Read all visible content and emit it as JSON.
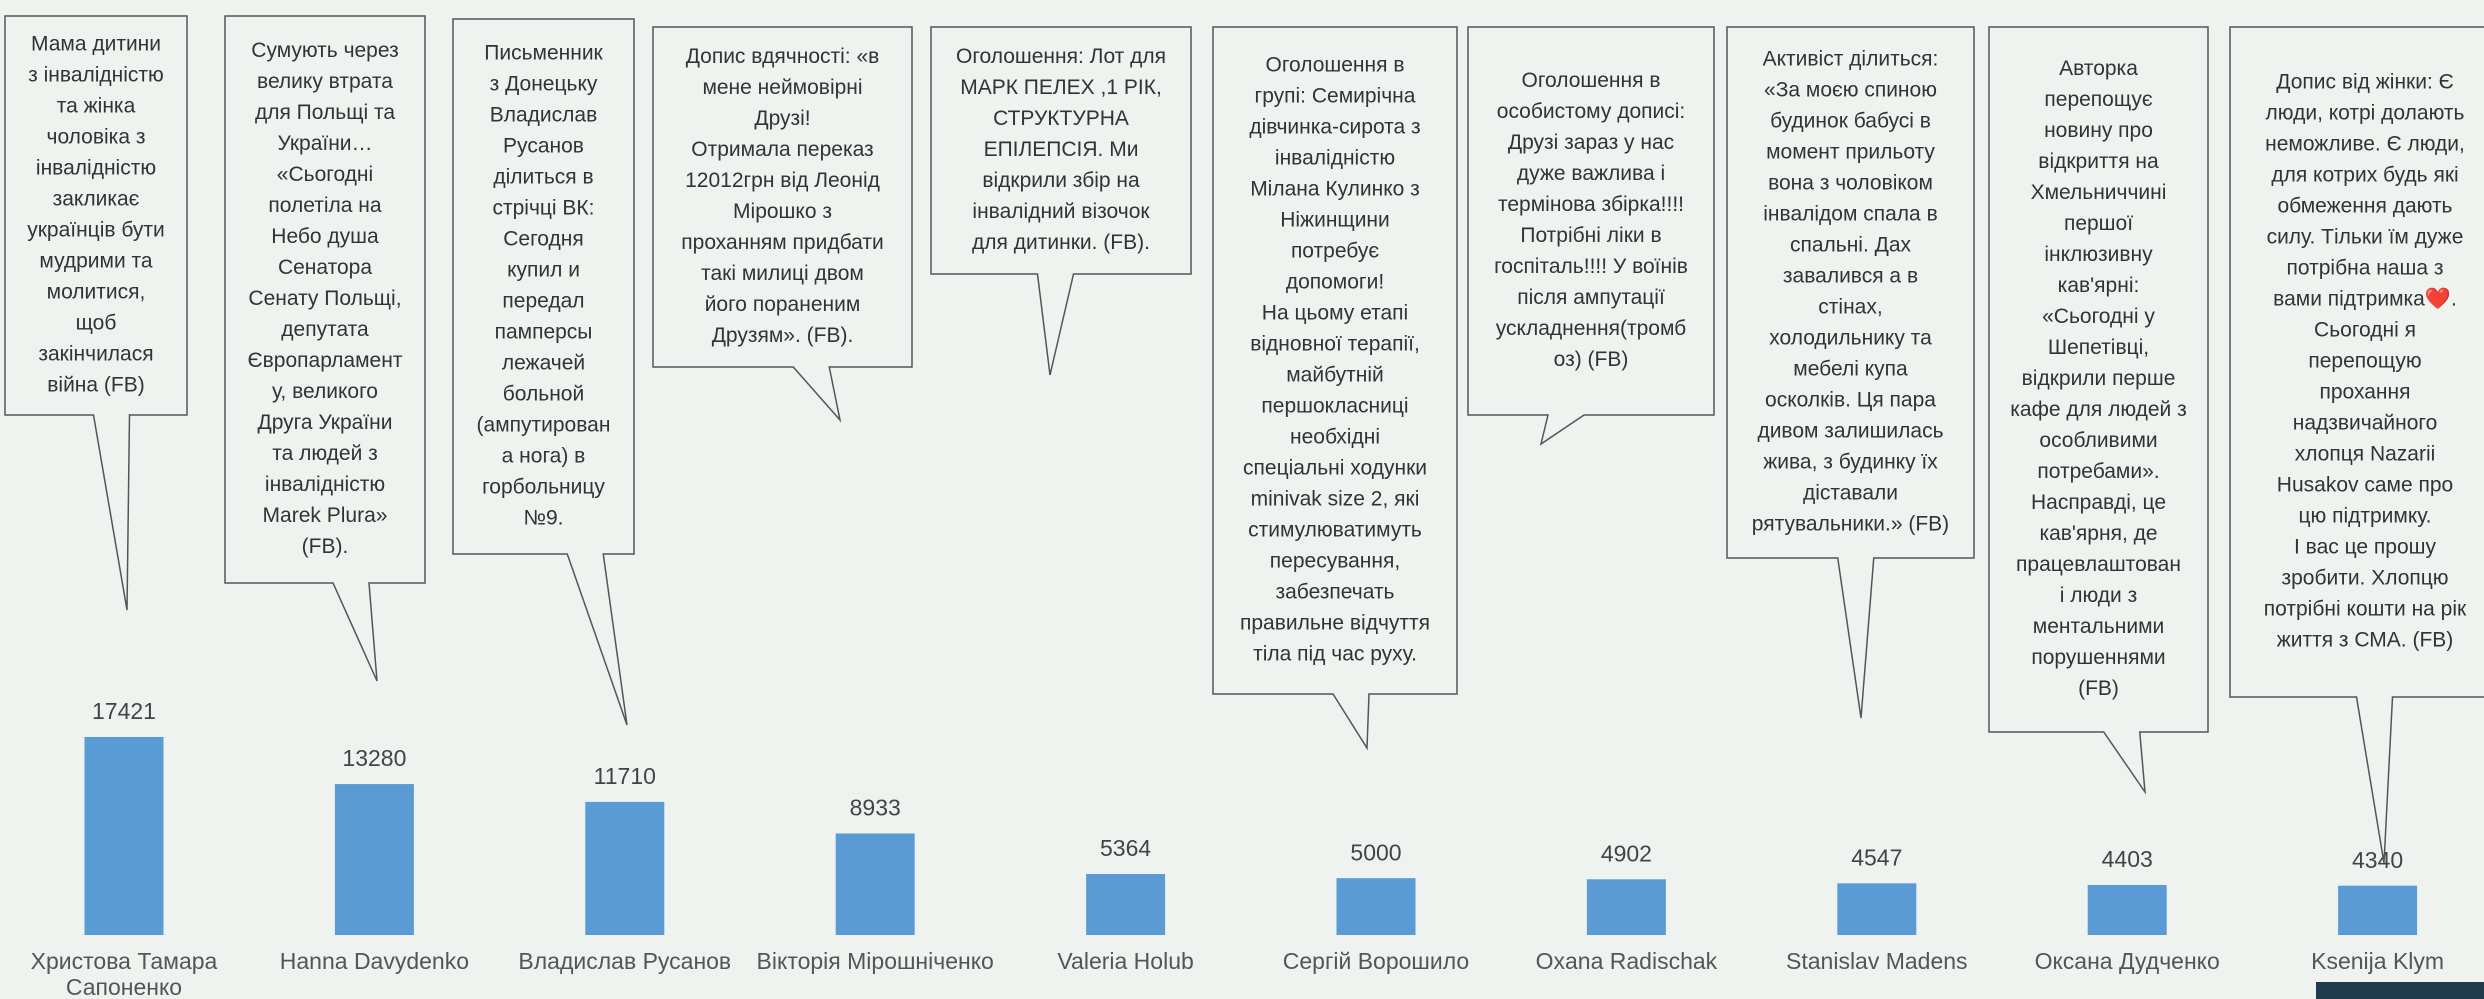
{
  "chart_data": {
    "type": "bar",
    "categories": [
      "Христова Тамара Сапоненко",
      "Hanna  Davydenko",
      "Владислав Русанов",
      "Вікторія Мірошніченко",
      "Valeria Holub",
      "Сергій Ворошило",
      "Oxana  Radischak",
      "Stanislav  Madens",
      "Оксана Дудченко",
      "Ksenija Klym"
    ],
    "values": [
      17421,
      13280,
      11710,
      8933,
      5364,
      5000,
      4902,
      4547,
      4403,
      4340
    ],
    "color": "#5b9bd5",
    "annotations": [
      [
        "Мама дитини",
        "з інвалідністю",
        "та жінка",
        "чоловіка з",
        "інвалідністю",
        "закликає",
        "українців бути",
        "мудрими та",
        "молитися,",
        "щоб",
        "закінчилася",
        "війна (FB)"
      ],
      [
        "Сумують через",
        "велику втрата",
        "для Польщі та",
        "України…",
        "«Сьогодні",
        "полетіла на",
        "Небо душа",
        "Сенатора",
        "Сенату Польщі,",
        "депутата",
        "Європарламент",
        "у, великого",
        "Друга України",
        "та людей з",
        "інвалідністю",
        "Marek Plura»",
        "(FB)."
      ],
      [
        "Письменник",
        "з Донецьку",
        "Владислав",
        "Русанов",
        "ділиться в",
        "стрічці ВК:",
        "Сегодня",
        "купил и",
        "передал",
        "памперсы",
        "лежачей",
        "больной",
        "(ампутирован",
        "а нога) в",
        "горбольницу",
        "№9."
      ],
      [
        "Допис вдячності: «в",
        "мене неймовірні",
        "Друзі!",
        "Отримала переказ",
        "12012грн від Леонід",
        "Мірошко з",
        "проханням придбати",
        "такі милиці двом",
        "його пораненим",
        "Друзям». (FB)."
      ],
      [
        "Оголошення: Лот для",
        "МАРК ПЕЛЕХ ,1 РІК,",
        "СТРУКТУРНА",
        "ЕПІЛЕПСІЯ. Ми",
        "відкрили збір на",
        "інвалідний візочок",
        "для дитинки. (FB)."
      ],
      [
        "Оголошення в",
        "групі: Семирічна",
        "дівчинка-сирота з",
        "інвалідністю",
        "Мілана Кулинко з",
        "Ніжинщини",
        "потребує",
        "допомоги!",
        "На цьому етапі",
        "відновної терапії,",
        "майбутній",
        "першокласниці",
        "необхідні",
        "спеціальні ходунки",
        "minivak size 2, які",
        "стимулюватимуть",
        "пересування,",
        "забезпечать",
        "правильне відчуття",
        "тіла під час руху."
      ],
      [
        "Оголошення в",
        "особистому дописі:",
        "Друзі зараз у нас",
        "дуже важлива і",
        "термінова збірка!!!!",
        "Потрібні ліки в",
        "госпіталь!!!! У воїнів",
        "після ампутації",
        "ускладнення(тромб",
        "оз) (FB)"
      ],
      [
        "Активіст ділиться:",
        "«За моєю спиною",
        "будинок бабусі в",
        "момент прильоту",
        "вона з чоловіком",
        "інвалідом спала в",
        "спальні. Дах",
        "завалився а в",
        "стінах,",
        "холодильнику та",
        "мебелі купа",
        "осколків. Ця пара",
        "дивом залишилась",
        "жива, з будинку їх",
        "діставали",
        "рятувальники.» (FB)"
      ],
      [
        "Авторка",
        "перепощує",
        "новину про",
        "відкриття на",
        "Хмельниччині",
        "першої",
        "інклюзивну",
        "кав'ярні:",
        "«Сьогодні у",
        "Шепетівці,",
        "відкрили перше",
        "кафе для людей з",
        "особливими",
        "потребами».",
        "Насправді, це",
        "кав'ярня, де",
        "працевлаштован",
        "і люди з",
        "ментальними",
        "порушеннями",
        "(FB)"
      ],
      [
        "Допис від жінки: Є",
        "люди, котрі долають",
        "неможливе. Є люди,",
        "для котрих будь які",
        "обмеження дають",
        "силу. Тільки їм дуже",
        "потрібна наша з",
        "вами підтримка❤️.",
        "Сьогодні я",
        "перепощую",
        "прохання",
        "надзвичайного",
        "хлопця Nazarii",
        "Husakov саме про",
        "цю підтримку.",
        "І вас це прошу",
        "зробити. Хлопцю",
        "потрібні кошти на рік",
        "життя з СМА. (FB)"
      ]
    ]
  }
}
